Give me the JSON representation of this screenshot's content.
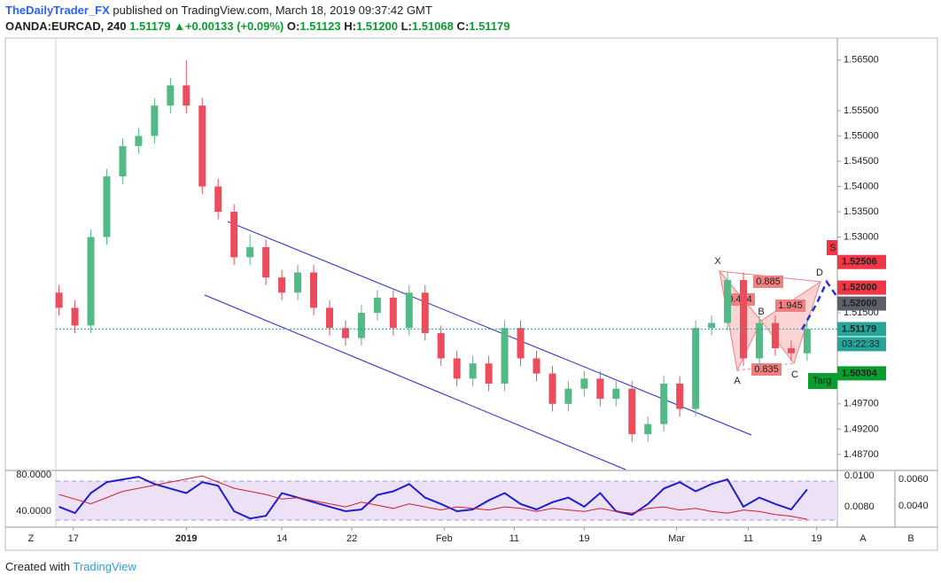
{
  "header": {
    "author": "TheDailyTrader_FX",
    "published": "published on TradingView.com, March 18, 2019 09:37:42 GMT",
    "symbol": "OANDA:EURCAD, 240",
    "last": "1.51179",
    "arrow": "▲",
    "change": "+0.00133 (+0.09%)",
    "o_label": "O:",
    "o": "1.51123",
    "h_label": "H:",
    "h": "1.51200",
    "l_label": "L:",
    "l": "1.51068",
    "c_label": "C:",
    "c": "1.51179"
  },
  "footer": {
    "created": "Created with",
    "brand": "TradingView",
    "z": "Z",
    "a": "A",
    "b": "B"
  },
  "chart_data": {
    "type": "candlestick",
    "up_color": "#53b987",
    "down_color": "#eb4d5c",
    "xlim": [
      -0.2,
      48.9
    ],
    "xticks": [
      {
        "value": 0.9,
        "label": "17"
      },
      {
        "value": 8,
        "label": "2019"
      },
      {
        "value": 14,
        "label": "14"
      },
      {
        "value": 18.4,
        "label": "22"
      },
      {
        "value": 24.2,
        "label": "Feb"
      },
      {
        "value": 28.6,
        "label": "11"
      },
      {
        "value": 33,
        "label": "19"
      },
      {
        "value": 38.8,
        "label": "Mar"
      },
      {
        "value": 43.3,
        "label": "11"
      },
      {
        "value": 47.6,
        "label": "19"
      }
    ],
    "ylim": [
      1.484,
      1.569
    ],
    "yticks": [
      {
        "value": 1.565,
        "label": "1.56500"
      },
      {
        "value": 1.555,
        "label": "1.55500"
      },
      {
        "value": 1.55,
        "label": "1.55000"
      },
      {
        "value": 1.545,
        "label": "1.54500"
      },
      {
        "value": 1.54,
        "label": "1.54000"
      },
      {
        "value": 1.535,
        "label": "1.53500"
      },
      {
        "value": 1.53,
        "label": "1.53000"
      },
      {
        "value": 1.515,
        "label": "1.51500"
      },
      {
        "value": 1.497,
        "label": "1.49700"
      },
      {
        "value": 1.492,
        "label": "1.49200"
      },
      {
        "value": 1.487,
        "label": "1.48700"
      }
    ],
    "open": [
      1.519,
      1.516,
      1.5125,
      1.53,
      1.542,
      1.548,
      1.55,
      1.556,
      1.56,
      1.556,
      1.54,
      1.535,
      1.526,
      1.528,
      1.522,
      1.519,
      1.523,
      1.516,
      1.512,
      1.51,
      1.515,
      1.518,
      1.512,
      1.519,
      1.511,
      1.506,
      1.502,
      1.505,
      1.501,
      1.512,
      1.506,
      1.503,
      1.497,
      1.5,
      1.502,
      1.498,
      1.5,
      1.491,
      1.493,
      1.501,
      1.496,
      1.512,
      1.513,
      1.5215,
      1.506,
      1.513,
      1.508,
      1.507
    ],
    "high": [
      1.5205,
      1.5175,
      1.5315,
      1.5435,
      1.5495,
      1.5515,
      1.5575,
      1.5615,
      1.565,
      1.5575,
      1.5415,
      1.5365,
      1.5305,
      1.5295,
      1.5235,
      1.5245,
      1.5245,
      1.5175,
      1.5135,
      1.5165,
      1.5195,
      1.5195,
      1.5205,
      1.5205,
      1.5125,
      1.5075,
      1.5065,
      1.5065,
      1.5135,
      1.5135,
      1.5075,
      1.5045,
      1.5015,
      1.5035,
      1.5035,
      1.5015,
      1.5015,
      1.4945,
      1.5025,
      1.5025,
      1.5135,
      1.5145,
      1.523,
      1.523,
      1.5145,
      1.5145,
      1.5095,
      1.5133
    ],
    "low": [
      1.5145,
      1.511,
      1.511,
      1.5285,
      1.5405,
      1.5465,
      1.5485,
      1.5545,
      1.5545,
      1.5385,
      1.5335,
      1.5245,
      1.5245,
      1.5205,
      1.5175,
      1.5175,
      1.5145,
      1.5105,
      1.5085,
      1.5085,
      1.5135,
      1.5105,
      1.5105,
      1.5095,
      1.5045,
      1.5005,
      1.5005,
      1.4995,
      1.4995,
      1.5045,
      1.5015,
      1.4955,
      1.4955,
      1.4985,
      1.4965,
      1.4965,
      1.4895,
      1.4895,
      1.4915,
      1.4945,
      1.4945,
      1.5105,
      1.5115,
      1.5045,
      1.5045,
      1.5065,
      1.5055,
      1.5055
    ],
    "close": [
      1.516,
      1.5125,
      1.53,
      1.542,
      1.548,
      1.55,
      1.556,
      1.56,
      1.556,
      1.54,
      1.535,
      1.526,
      1.528,
      1.522,
      1.519,
      1.523,
      1.516,
      1.512,
      1.51,
      1.515,
      1.518,
      1.512,
      1.519,
      1.511,
      1.506,
      1.502,
      1.505,
      1.501,
      1.512,
      1.506,
      1.503,
      1.497,
      1.5,
      1.502,
      1.498,
      1.5,
      1.491,
      1.493,
      1.501,
      1.496,
      1.512,
      1.513,
      1.5215,
      1.506,
      1.513,
      1.508,
      1.507,
      1.5118
    ],
    "price_labels": [
      {
        "value": 1.52506,
        "color": "#f23645"
      },
      {
        "value": 1.52,
        "label": "1.52000",
        "color": "#f23645"
      },
      {
        "value": 1.52,
        "label": "1.52000",
        "color": "#5d606b"
      },
      {
        "value": 1.51179,
        "color": "#26a69a"
      },
      {
        "value": 1.50304,
        "color": "#0a9e2f"
      }
    ],
    "countdown": "03:22:33",
    "annotations": {
      "x": "X",
      "a": "A",
      "b": "B",
      "c": "C",
      "d": "D",
      "xb": "0.494",
      "xd": "0.885",
      "bd": "1.945",
      "ac": "0.835",
      "target": "Targ",
      "stop": "S"
    },
    "indicator": {
      "ylim": [
        25.4,
        83.9
      ],
      "yticks": [
        {
          "value": 80,
          "label": "80.0000"
        },
        {
          "value": 40,
          "label": "40.0000"
        }
      ],
      "y2lim": [
        0.00686,
        0.01029
      ],
      "y2ticks": [
        {
          "value": 0.01,
          "label": "0.0100"
        },
        {
          "value": 0.008,
          "label": "0.0080"
        }
      ],
      "y3lim": [
        0.0026,
        0.0066
      ],
      "y3ticks": [
        {
          "value": 0.006,
          "label": "0.0060"
        },
        {
          "value": 0.004,
          "label": "0.0040"
        }
      ],
      "series": [
        {
          "color": "#1e1ed2",
          "values": [
            45,
            38,
            60,
            72,
            75,
            78,
            70,
            65,
            60,
            72,
            68,
            40,
            32,
            35,
            60,
            55,
            50,
            45,
            40,
            42,
            58,
            62,
            70,
            55,
            48,
            40,
            42,
            52,
            60,
            48,
            42,
            50,
            55,
            45,
            60,
            40,
            36,
            48,
            65,
            72,
            62,
            70,
            75,
            45,
            55,
            48,
            42,
            64
          ]
        },
        {
          "color": "#d11f2e",
          "axis": "y2",
          "values": [
            0.0088,
            0.0085,
            0.0082,
            0.0086,
            0.009,
            0.0092,
            0.0094,
            0.0096,
            0.0098,
            0.01,
            0.0096,
            0.0092,
            0.009,
            0.0088,
            0.0085,
            0.0086,
            0.0084,
            0.0082,
            0.008,
            0.0083,
            0.0081,
            0.0079,
            0.0082,
            0.008,
            0.0078,
            0.008,
            0.0079,
            0.0078,
            0.008,
            0.0079,
            0.0077,
            0.0079,
            0.0078,
            0.0077,
            0.0079,
            0.0077,
            0.0076,
            0.0079,
            0.008,
            0.0078,
            0.0079,
            0.0077,
            0.0076,
            0.0078,
            0.0077,
            0.0075,
            0.0074,
            0.0072
          ]
        }
      ]
    }
  }
}
